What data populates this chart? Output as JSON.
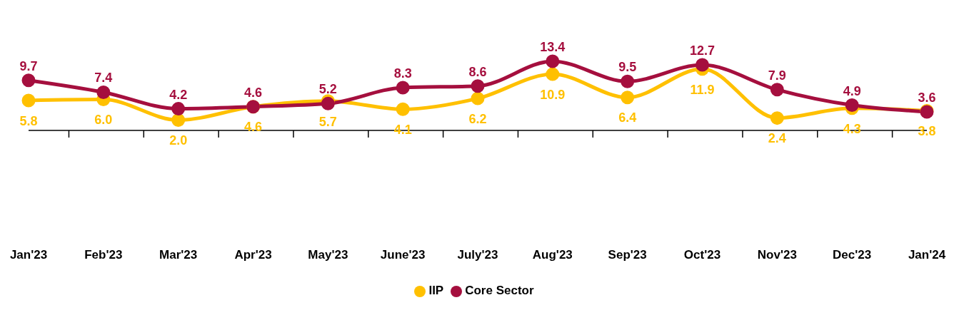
{
  "chart_data": {
    "type": "line",
    "categories": [
      "Jan'23",
      "Feb'23",
      "Mar'23",
      "Apr'23",
      "May'23",
      "June'23",
      "July'23",
      "Aug'23",
      "Sep'23",
      "Oct'23",
      "Nov'23",
      "Dec'23",
      "Jan'24"
    ],
    "series": [
      {
        "name": "IIP",
        "color": "#ffc000",
        "values": [
          5.8,
          6.0,
          2.0,
          4.6,
          5.7,
          4.1,
          6.2,
          10.9,
          6.4,
          11.9,
          2.4,
          4.3,
          3.8
        ],
        "value_labels": [
          "5.8",
          "6.0",
          "2.0",
          "4.6",
          "5.7",
          "4.1",
          "6.2",
          "10.9",
          "6.4",
          "11.9",
          "2.4",
          "4.3",
          "3.8"
        ]
      },
      {
        "name": "Core Sector",
        "color": "#a50f3e",
        "values": [
          9.7,
          7.4,
          4.2,
          4.6,
          5.2,
          8.3,
          8.6,
          13.4,
          9.5,
          12.7,
          7.9,
          4.9,
          3.6
        ],
        "value_labels": [
          "9.7",
          "7.4",
          "4.2",
          "4.6",
          "5.2",
          "8.3",
          "8.6",
          "13.4",
          "9.5",
          "12.7",
          "7.9",
          "4.9",
          "3.6"
        ]
      }
    ],
    "legend": "bottom",
    "marker": "circle",
    "line_style": "solid",
    "grid": false
  }
}
